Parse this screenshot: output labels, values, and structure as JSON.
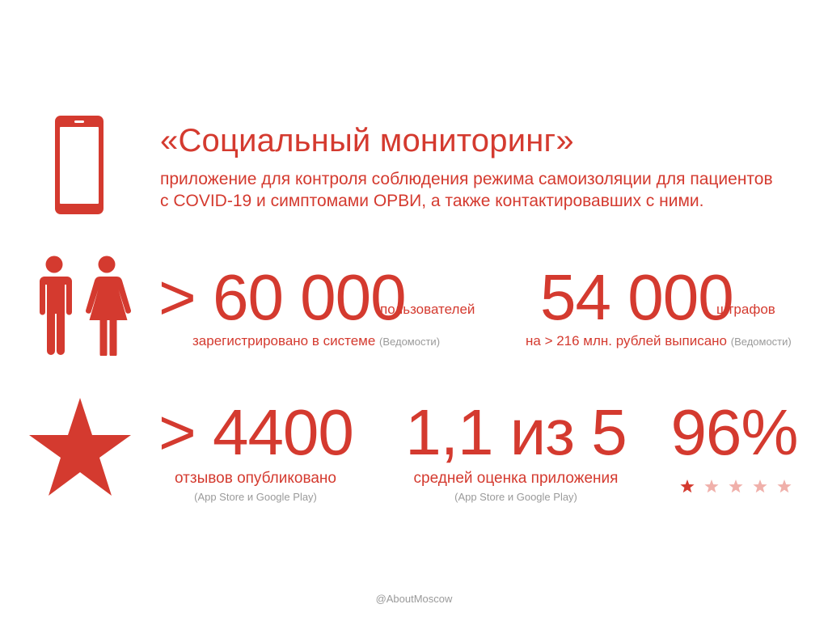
{
  "header": {
    "title": "«Социальный мониторинг»",
    "subtitle_line1": "приложение для контроля соблюдения режима самоизоляции для пациентов",
    "subtitle_line2": "с COVID-19 и симптомами ОРВИ, а также контактировавших с ними."
  },
  "stats_row1": {
    "users": {
      "value": "> 60 000",
      "unit": "пользователей",
      "caption": "зарегистрировано в системе",
      "source": "(Ведомости)"
    },
    "fines": {
      "value": "54 000",
      "unit": "штрафов",
      "caption": "на > 216 млн. рублей выписано",
      "source": "(Ведомости)"
    }
  },
  "stats_row2": {
    "reviews": {
      "value": "> 4400",
      "caption": "отзывов опубликовано",
      "source": "(App Store и Google Play)"
    },
    "rating": {
      "value": "1,1 из 5",
      "caption": "средней оценка приложения",
      "source": "(App Store и Google Play)"
    },
    "percent": {
      "value": "96%",
      "stars_total": 5,
      "stars_filled": 1
    }
  },
  "footer": {
    "handle": "@AboutMoscow"
  },
  "colors": {
    "accent": "#d43a2f",
    "star_faded": "#f0b0aa",
    "source_grey": "#9a9a9a"
  },
  "icons": [
    "smartphone-icon",
    "people-icon",
    "star-icon"
  ]
}
